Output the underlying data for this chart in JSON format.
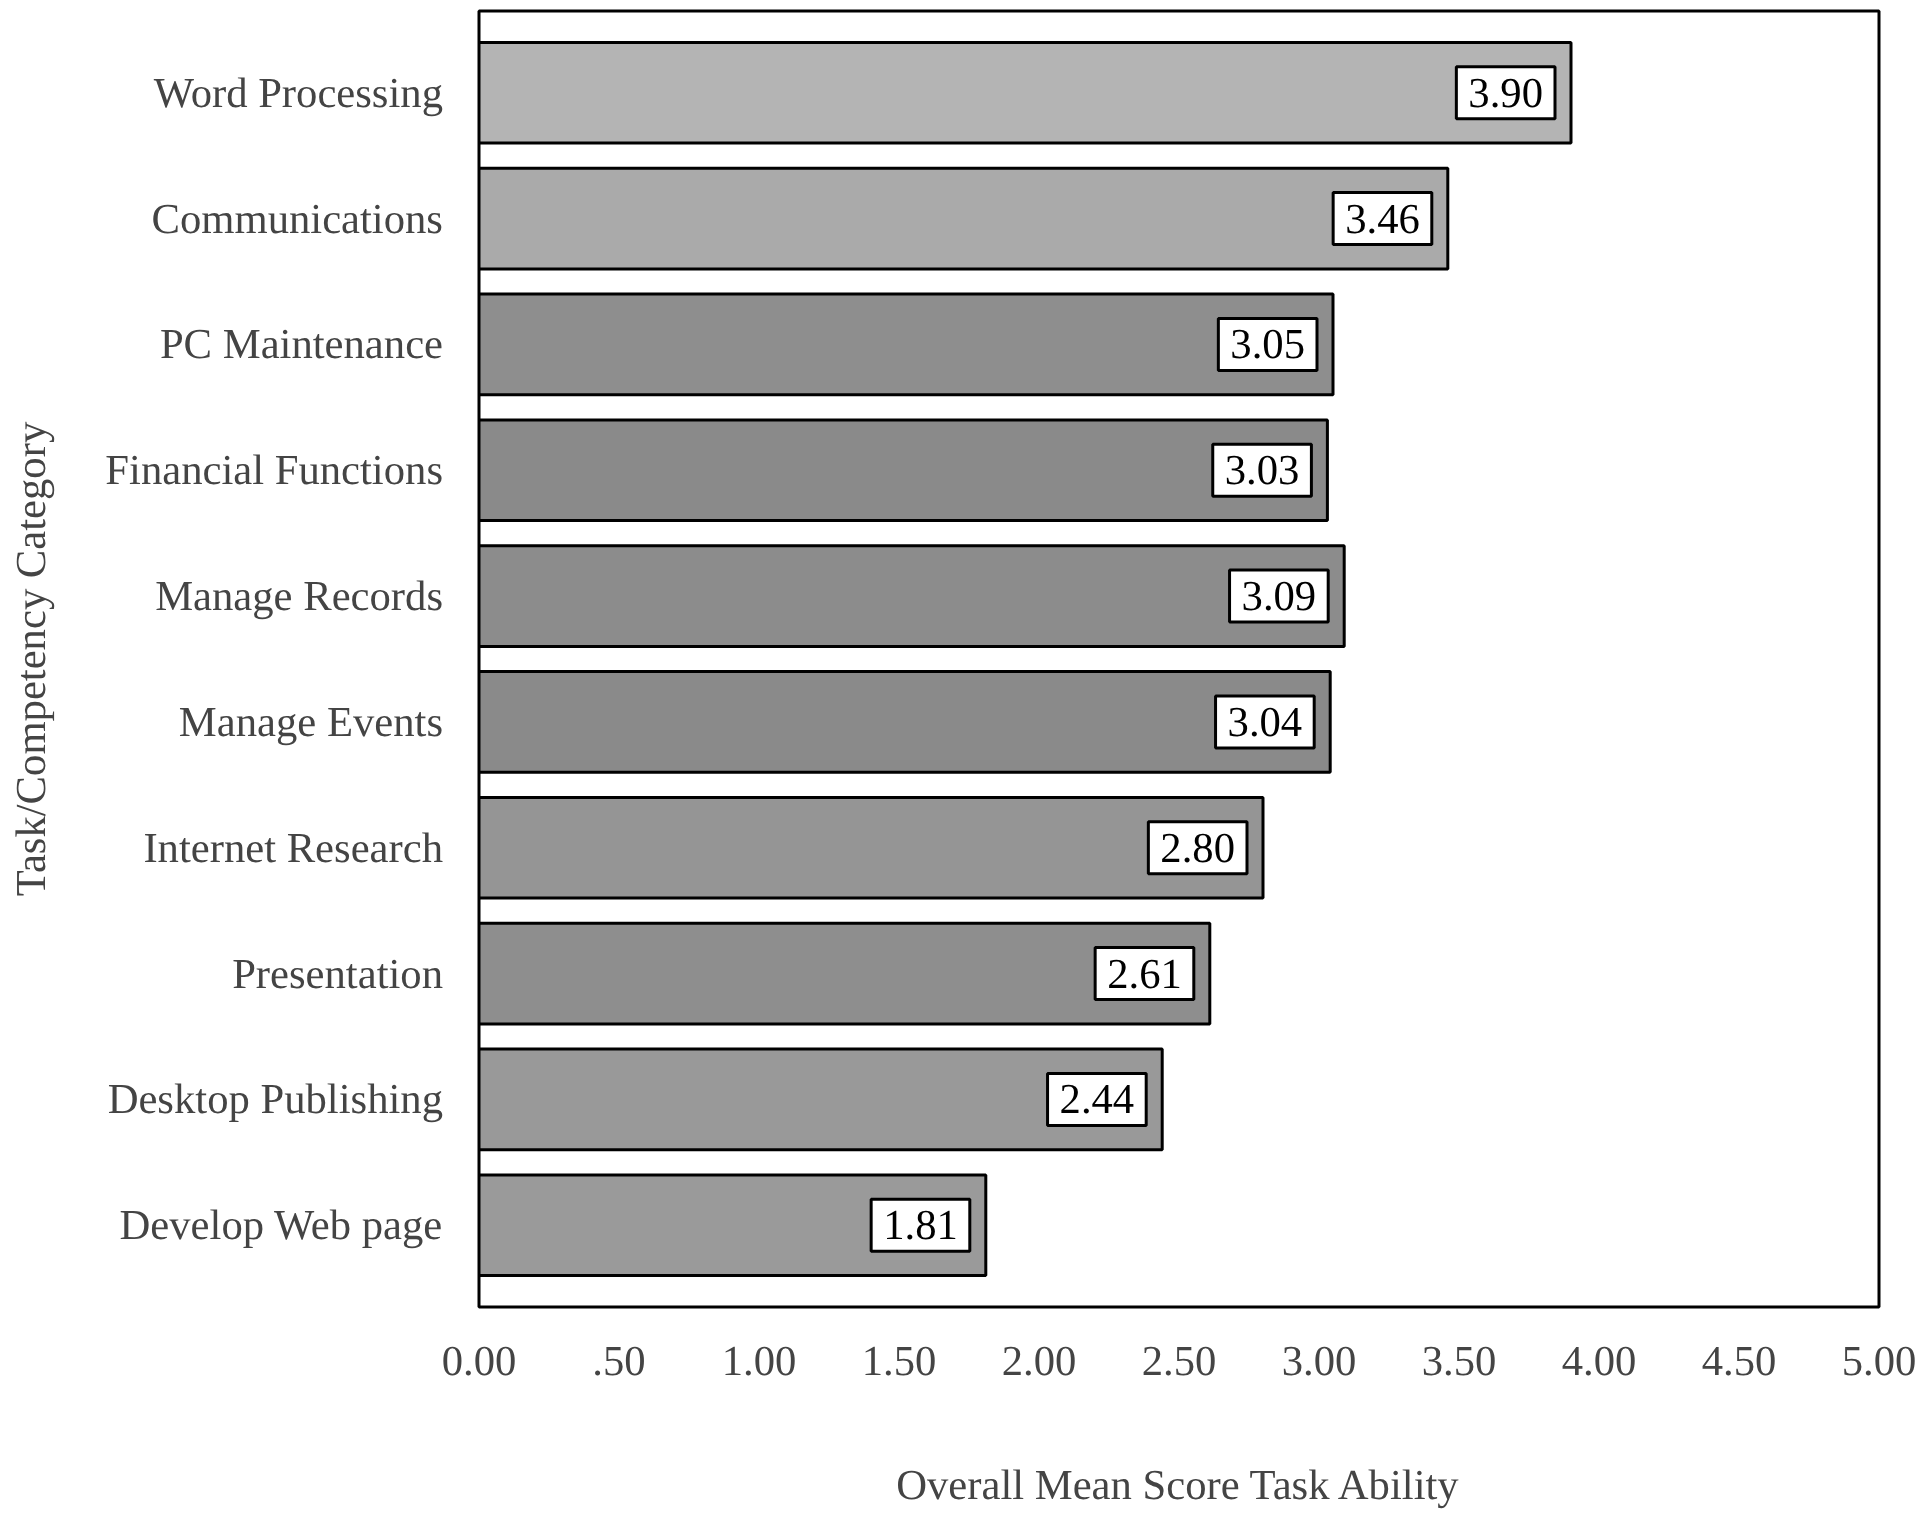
{
  "chart_data": {
    "type": "bar",
    "orientation": "horizontal",
    "xlabel": "Overall Mean Score Task Ability",
    "ylabel": "Task/Competency Category",
    "categories": [
      "Word Processing",
      "Communications",
      "PC Maintenance",
      "Financial Functions",
      "Manage Records",
      "Manage Events",
      "Internet Research",
      "Presentation",
      "Desktop Publishing",
      "Develop Web page"
    ],
    "values": [
      3.9,
      3.46,
      3.05,
      3.03,
      3.09,
      3.04,
      2.8,
      2.61,
      2.44,
      1.81
    ],
    "colors": [
      "#b4b4b4",
      "#aaaaaa",
      "#8e8e8e",
      "#8a8a8a",
      "#8c8c8c",
      "#8a8a8a",
      "#959595",
      "#8e8e8e",
      "#999999",
      "#9a9a9a"
    ],
    "value_labels": [
      "3.90",
      "3.46",
      "3.05",
      "3.03",
      "3.09",
      "3.04",
      "2.80",
      "2.61",
      "2.44",
      "1.81"
    ],
    "xlim": [
      0,
      5
    ],
    "xticks": [
      {
        "value": 0,
        "label": "0.00"
      },
      {
        "value": 0.5,
        "label": ".50"
      },
      {
        "value": 1,
        "label": "1.00"
      },
      {
        "value": 1.5,
        "label": "1.50"
      },
      {
        "value": 2,
        "label": "2.00"
      },
      {
        "value": 2.5,
        "label": "2.50"
      },
      {
        "value": 3,
        "label": "3.00"
      },
      {
        "value": 3.5,
        "label": "3.50"
      },
      {
        "value": 4,
        "label": "4.00"
      },
      {
        "value": 4.5,
        "label": "4.50"
      },
      {
        "value": 5,
        "label": "5.00"
      }
    ],
    "grid": false
  }
}
